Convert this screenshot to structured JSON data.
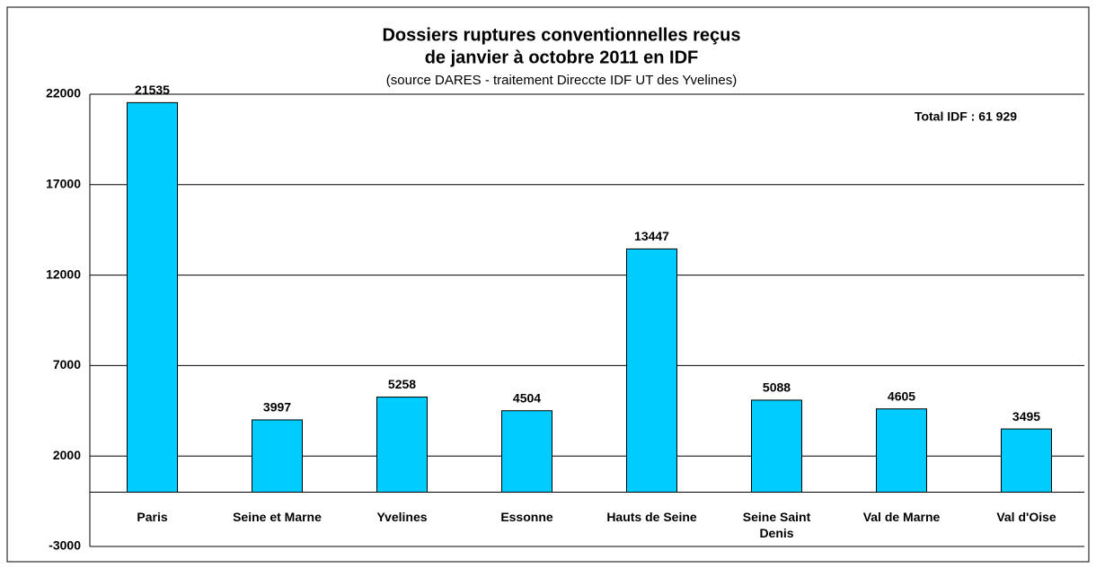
{
  "chart_data": {
    "type": "bar",
    "title": [
      "Dossiers ruptures conventionnelles reçus",
      "de janvier à octobre 2011 en IDF"
    ],
    "subtitle": "(source DARES - traitement Direccte IDF UT des Yvelines)",
    "annotation": "Total IDF : 61 929",
    "categories": [
      "Paris",
      "Seine et Marne",
      "Yvelines",
      "Essonne",
      "Hauts de Seine",
      "Seine Saint Denis",
      "Val de Marne",
      "Val d'Oise"
    ],
    "values": [
      21535,
      3997,
      5258,
      4504,
      13447,
      5088,
      4605,
      3495
    ],
    "color": "#00ccff",
    "ylim": [
      -3000,
      22000
    ],
    "yticks": [
      -3000,
      2000,
      7000,
      12000,
      17000,
      22000
    ],
    "grid": true
  }
}
